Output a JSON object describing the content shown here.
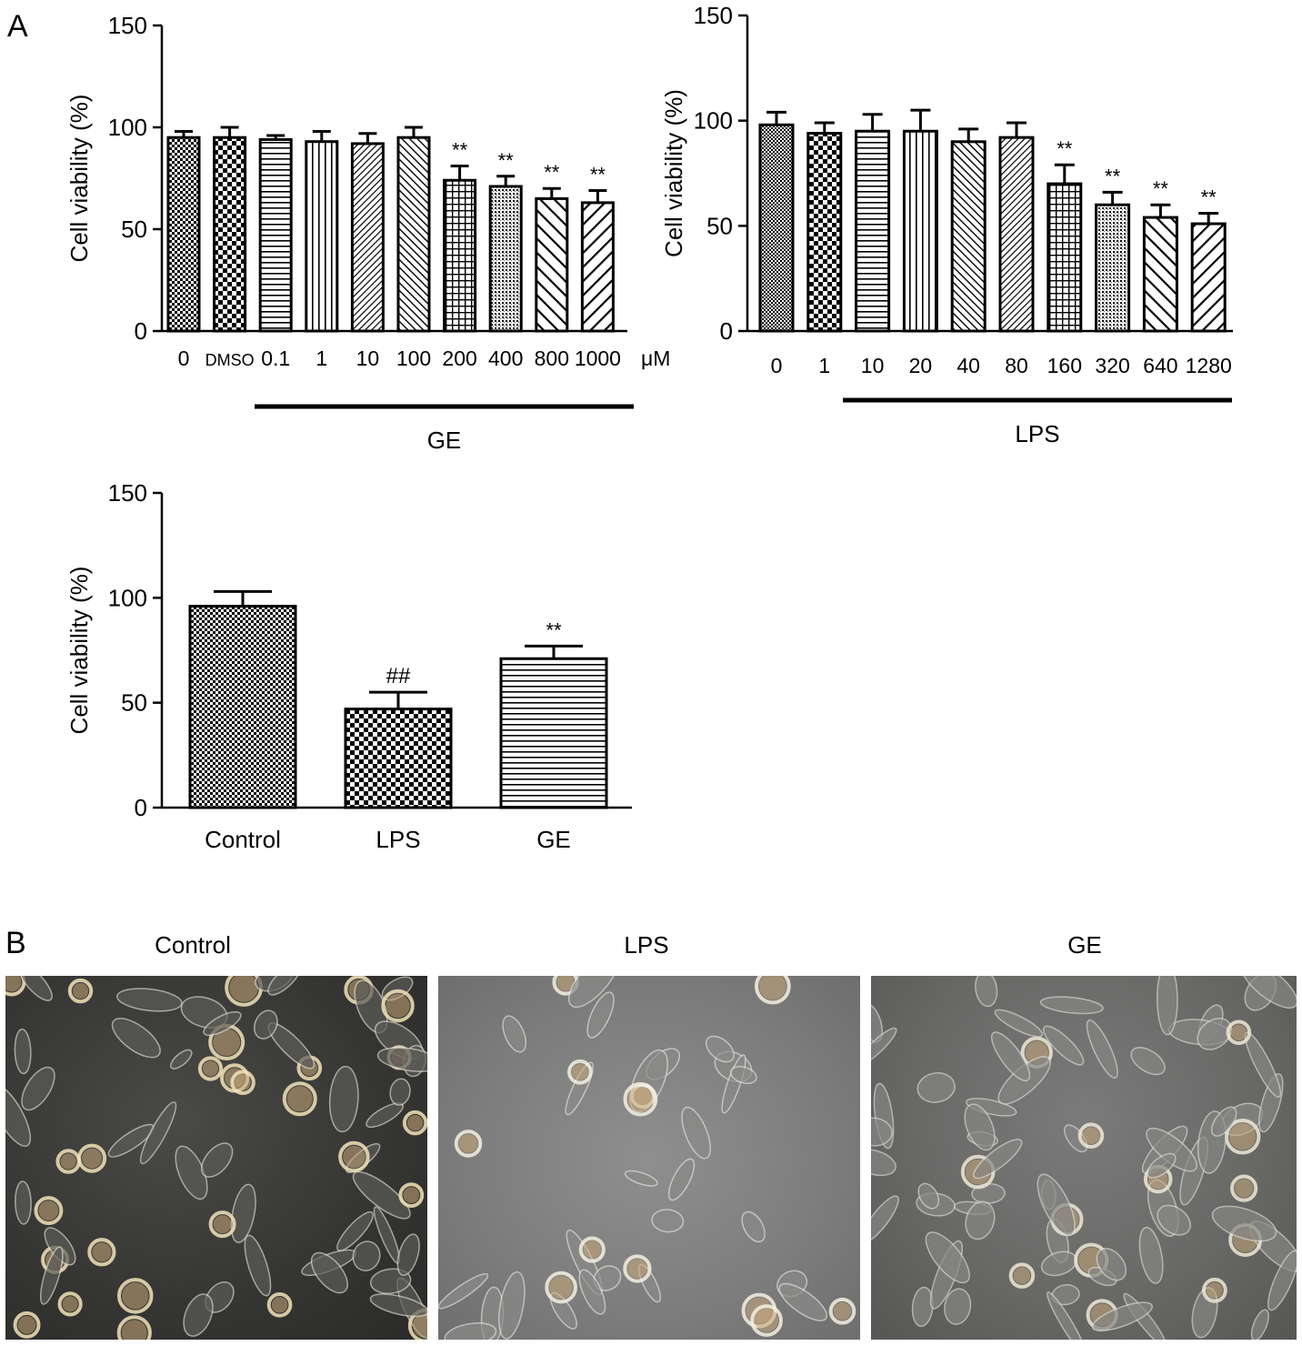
{
  "panel_a_label": "A",
  "panel_b_label": "B",
  "micrographs": [
    {
      "title": "Control"
    },
    {
      "title": "LPS"
    },
    {
      "title": "GE"
    }
  ],
  "chart_data": [
    {
      "type": "bar",
      "ylabel": "Cell viability (%)",
      "yticks": [
        "0",
        "50",
        "100",
        "150"
      ],
      "ylim": [
        0,
        150
      ],
      "categories": [
        "0",
        "DMSO",
        "0.1",
        "1",
        "10",
        "100",
        "200",
        "400",
        "800",
        "1000"
      ],
      "unit": "μM",
      "group_label": "GE",
      "values": [
        95,
        95,
        94,
        93,
        92,
        95,
        74,
        71,
        65,
        63
      ],
      "errors": [
        3,
        5,
        2,
        5,
        5,
        5,
        7,
        5,
        5,
        6
      ],
      "annotations": [
        "",
        "",
        "",
        "",
        "",
        "",
        "**",
        "**",
        "**",
        "**"
      ],
      "grid": false
    },
    {
      "type": "bar",
      "ylabel": "Cell viability (%)",
      "yticks": [
        "0",
        "50",
        "100",
        "150"
      ],
      "ylim": [
        0,
        150
      ],
      "categories": [
        "0",
        "1",
        "10",
        "20",
        "40",
        "80",
        "160",
        "320",
        "640",
        "1280"
      ],
      "group_label": "LPS",
      "values": [
        98,
        94,
        95,
        95,
        90,
        92,
        70,
        60,
        54,
        51
      ],
      "errors": [
        6,
        5,
        8,
        10,
        6,
        7,
        9,
        6,
        6,
        5
      ],
      "annotations": [
        "",
        "",
        "",
        "",
        "",
        "",
        "**",
        "**",
        "**",
        "**"
      ],
      "grid": false
    },
    {
      "type": "bar",
      "ylabel": "Cell viability (%)",
      "yticks": [
        "0",
        "50",
        "100",
        "150"
      ],
      "ylim": [
        0,
        150
      ],
      "categories": [
        "Control",
        "LPS",
        "GE"
      ],
      "values": [
        96,
        47,
        71
      ],
      "errors": [
        7,
        8,
        6
      ],
      "annotations": [
        "",
        "##",
        "**"
      ],
      "grid": false
    }
  ]
}
